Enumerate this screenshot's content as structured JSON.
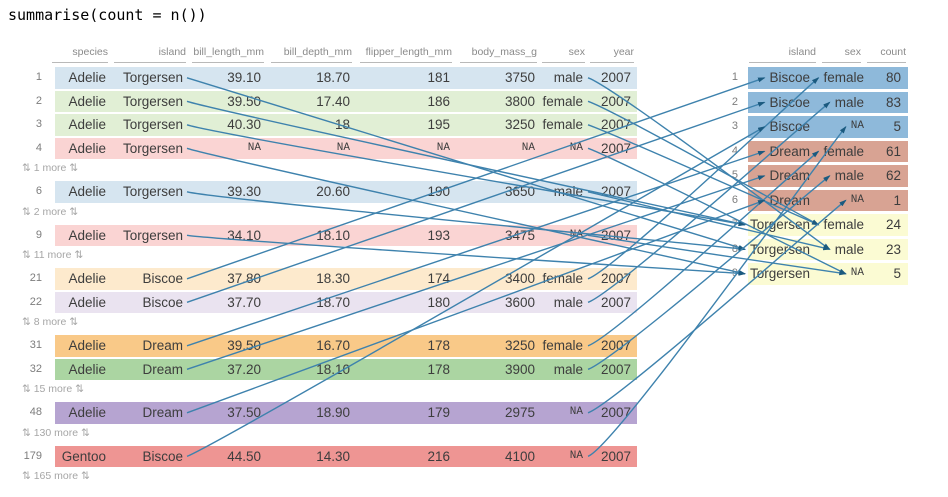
{
  "title": "summarise(count = n())",
  "left_table": {
    "columns": [
      "species",
      "island",
      "bill_length_mm",
      "bill_depth_mm",
      "flipper_length_mm",
      "body_mass_g",
      "sex",
      "year"
    ],
    "items": [
      {
        "type": "data",
        "n": "1",
        "cells": {
          "species": "Adelie",
          "island": "Torgersen",
          "bill_length_mm": "39.10",
          "bill_depth_mm": "18.70",
          "flipper_length_mm": "181",
          "body_mass_g": "3750",
          "sex": "male",
          "year": "2007"
        },
        "row_color": "#d6e5f0"
      },
      {
        "type": "data",
        "n": "2",
        "cells": {
          "species": "Adelie",
          "island": "Torgersen",
          "bill_length_mm": "39.50",
          "bill_depth_mm": "17.40",
          "flipper_length_mm": "186",
          "body_mass_g": "3800",
          "sex": "female",
          "year": "2007"
        },
        "row_color": "#e1efd5"
      },
      {
        "type": "data",
        "n": "3",
        "cells": {
          "species": "Adelie",
          "island": "Torgersen",
          "bill_length_mm": "40.30",
          "bill_depth_mm": "18",
          "flipper_length_mm": "195",
          "body_mass_g": "3250",
          "sex": "female",
          "year": "2007"
        },
        "row_color": "#e1efd5"
      },
      {
        "type": "data",
        "n": "4",
        "cells": {
          "species": "Adelie",
          "island": "Torgersen",
          "bill_length_mm": "NA",
          "bill_depth_mm": "NA",
          "flipper_length_mm": "NA",
          "body_mass_g": "NA",
          "sex": "NA",
          "year": "2007"
        },
        "row_color": "#fad4d3"
      },
      {
        "type": "more",
        "label": "⇅ 1 more ⇅"
      },
      {
        "type": "data",
        "n": "6",
        "cells": {
          "species": "Adelie",
          "island": "Torgersen",
          "bill_length_mm": "39.30",
          "bill_depth_mm": "20.60",
          "flipper_length_mm": "190",
          "body_mass_g": "3650",
          "sex": "male",
          "year": "2007"
        },
        "row_color": "#d6e5f0"
      },
      {
        "type": "more",
        "label": "⇅ 2 more ⇅"
      },
      {
        "type": "data",
        "n": "9",
        "cells": {
          "species": "Adelie",
          "island": "Torgersen",
          "bill_length_mm": "34.10",
          "bill_depth_mm": "18.10",
          "flipper_length_mm": "193",
          "body_mass_g": "3475",
          "sex": "NA",
          "year": "2007"
        },
        "row_color": "#fad4d3"
      },
      {
        "type": "more",
        "label": "⇅ 11 more ⇅"
      },
      {
        "type": "data",
        "n": "21",
        "cells": {
          "species": "Adelie",
          "island": "Biscoe",
          "bill_length_mm": "37.80",
          "bill_depth_mm": "18.30",
          "flipper_length_mm": "174",
          "body_mass_g": "3400",
          "sex": "female",
          "year": "2007"
        },
        "row_color": "#fdeacd"
      },
      {
        "type": "data",
        "n": "22",
        "cells": {
          "species": "Adelie",
          "island": "Biscoe",
          "bill_length_mm": "37.70",
          "bill_depth_mm": "18.70",
          "flipper_length_mm": "180",
          "body_mass_g": "3600",
          "sex": "male",
          "year": "2007"
        },
        "row_color": "#eae3f0"
      },
      {
        "type": "more",
        "label": "⇅ 8 more ⇅"
      },
      {
        "type": "data",
        "n": "31",
        "cells": {
          "species": "Adelie",
          "island": "Dream",
          "bill_length_mm": "39.50",
          "bill_depth_mm": "16.70",
          "flipper_length_mm": "178",
          "body_mass_g": "3250",
          "sex": "female",
          "year": "2007"
        },
        "row_color": "#f9c988"
      },
      {
        "type": "data",
        "n": "32",
        "cells": {
          "species": "Adelie",
          "island": "Dream",
          "bill_length_mm": "37.20",
          "bill_depth_mm": "18.10",
          "flipper_length_mm": "178",
          "body_mass_g": "3900",
          "sex": "male",
          "year": "2007"
        },
        "row_color": "#abd5a2"
      },
      {
        "type": "more",
        "label": "⇅ 15 more ⇅"
      },
      {
        "type": "data",
        "n": "48",
        "cells": {
          "species": "Adelie",
          "island": "Dream",
          "bill_length_mm": "37.50",
          "bill_depth_mm": "18.90",
          "flipper_length_mm": "179",
          "body_mass_g": "2975",
          "sex": "NA",
          "year": "2007"
        },
        "row_color": "#b6a4d1"
      },
      {
        "type": "more",
        "label": "⇅ 130 more ⇅"
      },
      {
        "type": "data",
        "n": "179",
        "cells": {
          "species": "Gentoo",
          "island": "Biscoe",
          "bill_length_mm": "44.50",
          "bill_depth_mm": "14.30",
          "flipper_length_mm": "216",
          "body_mass_g": "4100",
          "sex": "NA",
          "year": "2007"
        },
        "row_color": "#ee9593"
      },
      {
        "type": "more",
        "label": "⇅ 165 more ⇅"
      }
    ]
  },
  "right_table": {
    "columns": [
      "island",
      "sex",
      "count"
    ],
    "rows": [
      {
        "n": "1",
        "cells": {
          "island": "Biscoe",
          "sex": "female",
          "count": "80"
        },
        "row_color": "#8eb9da"
      },
      {
        "n": "2",
        "cells": {
          "island": "Biscoe",
          "sex": "male",
          "count": "83"
        },
        "row_color": "#8eb9da"
      },
      {
        "n": "3",
        "cells": {
          "island": "Biscoe",
          "sex": "NA",
          "count": "5"
        },
        "row_color": "#8eb9da"
      },
      {
        "n": "4",
        "cells": {
          "island": "Dream",
          "sex": "female",
          "count": "61"
        },
        "row_color": "#d8a393"
      },
      {
        "n": "5",
        "cells": {
          "island": "Dream",
          "sex": "male",
          "count": "62"
        },
        "row_color": "#d8a393"
      },
      {
        "n": "6",
        "cells": {
          "island": "Dream",
          "sex": "NA",
          "count": "1"
        },
        "row_color": "#d8a393"
      },
      {
        "n": "7",
        "cells": {
          "island": "Torgersen",
          "sex": "female",
          "count": "24"
        },
        "row_color": "#fbfbd3"
      },
      {
        "n": "8",
        "cells": {
          "island": "Torgersen",
          "sex": "male",
          "count": "23"
        },
        "row_color": "#fbfbd3"
      },
      {
        "n": "9",
        "cells": {
          "island": "Torgersen",
          "sex": "NA",
          "count": "5"
        },
        "row_color": "#fbfbd3"
      }
    ]
  },
  "connections": [
    {
      "from_n": "1",
      "to_n": "8"
    },
    {
      "from_n": "2",
      "to_n": "7"
    },
    {
      "from_n": "3",
      "to_n": "7"
    },
    {
      "from_n": "4",
      "to_n": "9"
    },
    {
      "from_n": "6",
      "to_n": "8"
    },
    {
      "from_n": "9",
      "to_n": "9"
    },
    {
      "from_n": "21",
      "to_n": "1"
    },
    {
      "from_n": "22",
      "to_n": "2"
    },
    {
      "from_n": "31",
      "to_n": "4"
    },
    {
      "from_n": "32",
      "to_n": "5"
    },
    {
      "from_n": "48",
      "to_n": "6"
    },
    {
      "from_n": "179",
      "to_n": "3"
    }
  ],
  "colors": {
    "connector_line": "#3e82ad",
    "connector_arrow": "#1b5a7f",
    "header_text": "#8a8a8a",
    "cell_text": "#3d3d3d",
    "row_number_text": "#7d7d7d",
    "more_text": "#a6a6a6",
    "header_rule": "#b9b9b9",
    "background": "#ffffff"
  }
}
